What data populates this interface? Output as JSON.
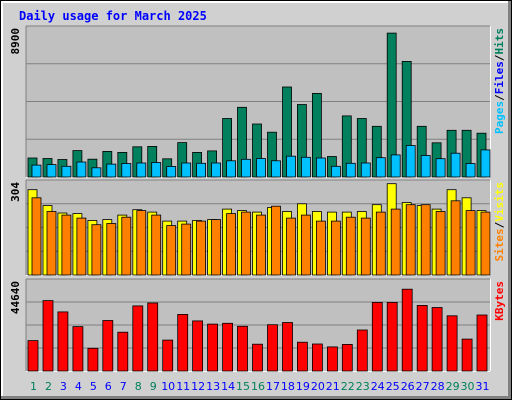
{
  "chart_data": {
    "type": "bar",
    "title": "Daily usage for March 2025",
    "colors": {
      "hits": "#00805c",
      "files": "#00c0ff",
      "visits": "#ffff00",
      "sites": "#ff8000",
      "kbytes": "#ff0000",
      "title": "#0000ff",
      "weekend_label": "#00805c",
      "weekday_label": "#0000ff",
      "plot_bg": "#c0c0c0",
      "frame_bg": "#d0d0d0"
    },
    "categories": [
      "1",
      "2",
      "3",
      "4",
      "5",
      "6",
      "7",
      "8",
      "9",
      "10",
      "11",
      "12",
      "13",
      "14",
      "15",
      "16",
      "17",
      "18",
      "19",
      "20",
      "21",
      "22",
      "23",
      "24",
      "25",
      "26",
      "27",
      "28",
      "29",
      "30",
      "31"
    ],
    "weekend_days": [
      "1",
      "2",
      "8",
      "9",
      "15",
      "16",
      "22",
      "23",
      "29",
      "30"
    ],
    "panels": [
      {
        "id": "pages_files_hits",
        "ymax_label": "8900",
        "ymax": 8900,
        "legend": [
          {
            "text": "Pages",
            "color": "#00c0ff"
          },
          {
            "text": "/",
            "color": "#000000"
          },
          {
            "text": "Files",
            "color": "#0000ff"
          },
          {
            "text": "/",
            "color": "#000000"
          },
          {
            "text": "Hits",
            "color": "#00805c"
          }
        ],
        "series": [
          {
            "name": "Hits",
            "color": "#00805c",
            "values": [
              1150,
              1120,
              1060,
              1600,
              1080,
              1550,
              1490,
              1830,
              1850,
              1100,
              2080,
              1490,
              1580,
              3540,
              4220,
              3210,
              2710,
              5450,
              4390,
              5060,
              1240,
              3700,
              3540,
              3070,
              8710,
              7000,
              3070,
              2070,
              2830,
              2830,
              2650
            ]
          },
          {
            "name": "Files",
            "color": "#00c0ff",
            "values": [
              720,
              750,
              650,
              910,
              560,
              780,
              820,
              850,
              880,
              640,
              850,
              830,
              850,
              980,
              1070,
              1120,
              980,
              1260,
              1190,
              1150,
              650,
              830,
              850,
              1170,
              1340,
              1910,
              1300,
              1110,
              1440,
              820,
              1640
            ]
          },
          {
            "name": "Pages",
            "color": "#00c0ff",
            "values": [
              0,
              0,
              0,
              0,
              0,
              0,
              0,
              0,
              0,
              0,
              0,
              0,
              0,
              0,
              0,
              0,
              0,
              0,
              0,
              0,
              0,
              0,
              0,
              0,
              0,
              0,
              0,
              0,
              0,
              0,
              0
            ]
          }
        ]
      },
      {
        "id": "sites_visits",
        "ymax_label": "304",
        "ymax": 304,
        "legend": [
          {
            "text": "Sites",
            "color": "#ff8000"
          },
          {
            "text": "/",
            "color": "#000000"
          },
          {
            "text": "Visits",
            "color": "#ffff00"
          }
        ],
        "series": [
          {
            "name": "Visits",
            "color": "#ffff00",
            "values": [
              285,
              232,
              207,
              205,
              182,
              185,
              200,
              218,
              210,
              180,
              180,
              182,
              185,
              220,
              215,
              210,
              225,
              212,
              238,
              212,
              210,
              210,
              212,
              235,
              305,
              242,
              232,
              220,
              285,
              258,
              215
            ]
          },
          {
            "name": "Sites",
            "color": "#ff8000",
            "values": [
              258,
              212,
              200,
              190,
              168,
              172,
              193,
              215,
              200,
              165,
              170,
              180,
              185,
              205,
              210,
              200,
              230,
              190,
              200,
              180,
              180,
              193,
              190,
              210,
              220,
              235,
              235,
              212,
              248,
              215,
              210
            ]
          }
        ]
      },
      {
        "id": "kbytes",
        "ymax_label": "44640",
        "ymax": 44640,
        "legend": [
          {
            "text": "KBytes",
            "color": "#ff0000"
          }
        ],
        "series": [
          {
            "name": "KBytes",
            "color": "#ff0000",
            "values": [
              15400,
              35700,
              30000,
              22500,
              11500,
              25600,
              19700,
              33000,
              34500,
              15700,
              28700,
              25400,
              23800,
              24200,
              22700,
              13600,
              23500,
              24600,
              14600,
              13700,
              12200,
              13500,
              20800,
              34800,
              34800,
              41500,
              33300,
              32200,
              28000,
              16200,
              28400
            ]
          }
        ]
      }
    ]
  }
}
